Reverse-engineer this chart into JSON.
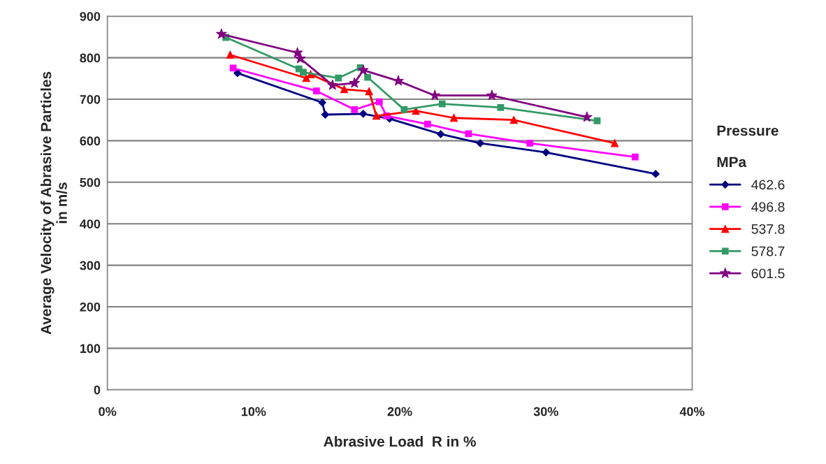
{
  "chart_data": {
    "type": "line",
    "xlabel": "Abrasive Load  R in %",
    "ylabel": "Average Velocity of Abrasive Particles\nin m/s",
    "legend_title": "Pressure\n\nMPa",
    "legend": "right",
    "grid": "y",
    "xlim": [
      0,
      40
    ],
    "ylim": [
      0,
      900
    ],
    "xticks": [
      {
        "value": 0,
        "label": "0%"
      },
      {
        "value": 10,
        "label": "10%"
      },
      {
        "value": 20,
        "label": "20%"
      },
      {
        "value": 30,
        "label": "30%"
      },
      {
        "value": 40,
        "label": "40%"
      }
    ],
    "yticks": [
      0,
      100,
      200,
      300,
      400,
      500,
      600,
      700,
      800,
      900
    ],
    "series": [
      {
        "name": "462.6",
        "color": "#000080",
        "marker": "diamond",
        "x": [
          8.9,
          14.7,
          14.9,
          17.5,
          19.3,
          22.8,
          25.5,
          30.0,
          37.5
        ],
        "values": [
          763,
          692,
          663,
          665,
          653,
          616,
          594,
          572,
          520
        ]
      },
      {
        "name": "496.8",
        "color": "#ff00ff",
        "marker": "square",
        "x": [
          8.6,
          14.3,
          16.9,
          18.6,
          19.1,
          21.9,
          24.7,
          28.9,
          36.1
        ],
        "values": [
          775,
          720,
          675,
          694,
          660,
          640,
          617,
          594,
          561
        ]
      },
      {
        "name": "537.8",
        "color": "#ff0000",
        "marker": "triangle",
        "x": [
          8.4,
          13.6,
          13.9,
          16.2,
          17.9,
          18.4,
          21.1,
          23.7,
          27.8,
          34.7
        ],
        "values": [
          807,
          751,
          760,
          724,
          719,
          660,
          672,
          655,
          650,
          594
        ]
      },
      {
        "name": "578.7",
        "color": "#339966",
        "marker": "square",
        "x": [
          8.1,
          13.1,
          13.4,
          15.8,
          17.3,
          17.8,
          20.3,
          22.9,
          26.9,
          33.5
        ],
        "values": [
          849,
          773,
          765,
          751,
          776,
          753,
          675,
          689,
          680,
          648
        ]
      },
      {
        "name": "601.5",
        "color": "#800080",
        "marker": "star",
        "x": [
          7.8,
          13.0,
          13.2,
          15.4,
          16.9,
          17.5,
          19.9,
          22.4,
          26.3,
          32.8
        ],
        "values": [
          857,
          812,
          798,
          734,
          739,
          770,
          744,
          709,
          709,
          657
        ]
      }
    ]
  }
}
